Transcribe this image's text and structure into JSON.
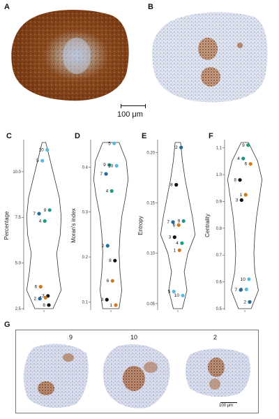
{
  "panels": {
    "A": "A",
    "B": "B",
    "C": "C",
    "D": "D",
    "E": "E",
    "F": "F",
    "G": "G"
  },
  "scalebar_top": "100 μm",
  "scalebar_bottom": "100 μm",
  "colors": {
    "cyan": "#5bb8de",
    "teal": "#1e9a86",
    "blue": "#1f6d9b",
    "orange": "#d17a1a",
    "black": "#111111"
  },
  "chart_data": [
    {
      "type": "scatter",
      "xlabel": "",
      "ylabel": "Percentage",
      "yticks": [
        "2.5",
        "5.0",
        "7.5",
        "10.0"
      ],
      "ylim": [
        2.5,
        11.6
      ],
      "points": [
        {
          "label": "10",
          "y": 11.2,
          "color": "#5bb8de"
        },
        {
          "label": "5",
          "y": 10.6,
          "color": "#5bb8de"
        },
        {
          "label": "9",
          "y": 7.9,
          "color": "#1e9a86"
        },
        {
          "label": "7",
          "y": 7.7,
          "color": "#1f6d9b"
        },
        {
          "label": "4",
          "y": 7.3,
          "color": "#1e9a86"
        },
        {
          "label": "6",
          "y": 3.7,
          "color": "#d17a1a"
        },
        {
          "label": "3",
          "y": 3.2,
          "color": "#111111"
        },
        {
          "label": "1",
          "y": 3.1,
          "color": "#d17a1a"
        },
        {
          "label": "2",
          "y": 3.05,
          "color": "#1f6d9b"
        },
        {
          "label": "8",
          "y": 2.7,
          "color": "#111111"
        }
      ]
    },
    {
      "type": "scatter",
      "xlabel": "",
      "ylabel": "Moran's index",
      "yticks": [
        "0.1",
        "0.2",
        "0.3",
        "0.4"
      ],
      "ylim": [
        0.085,
        0.455
      ],
      "points": [
        {
          "label": "5",
          "y": 0.453,
          "color": "#5bb8de"
        },
        {
          "label": "9",
          "y": 0.405,
          "color": "#1e9a86"
        },
        {
          "label": "10",
          "y": 0.403,
          "color": "#5bb8de"
        },
        {
          "label": "7",
          "y": 0.385,
          "color": "#1f6d9b"
        },
        {
          "label": "4",
          "y": 0.347,
          "color": "#1e9a86"
        },
        {
          "label": "2",
          "y": 0.225,
          "color": "#1f6d9b"
        },
        {
          "label": "8",
          "y": 0.192,
          "color": "#111111"
        },
        {
          "label": "6",
          "y": 0.147,
          "color": "#d17a1a"
        },
        {
          "label": "3",
          "y": 0.105,
          "color": "#111111"
        },
        {
          "label": "1",
          "y": 0.093,
          "color": "#d17a1a"
        }
      ]
    },
    {
      "type": "scatter",
      "xlabel": "",
      "ylabel": "Entropy",
      "yticks": [
        "0.05",
        "0.10",
        "0.15",
        "0.20"
      ],
      "ylim": [
        0.045,
        0.21
      ],
      "points": [
        {
          "label": "2",
          "y": 0.205,
          "color": "#1f6d9b"
        },
        {
          "label": "8",
          "y": 0.168,
          "color": "#111111"
        },
        {
          "label": "9",
          "y": 0.132,
          "color": "#1e9a86"
        },
        {
          "label": "7",
          "y": 0.131,
          "color": "#1f6d9b"
        },
        {
          "label": "6",
          "y": 0.128,
          "color": "#d17a1a"
        },
        {
          "label": "3",
          "y": 0.116,
          "color": "#111111"
        },
        {
          "label": "4",
          "y": 0.11,
          "color": "#1e9a86"
        },
        {
          "label": "1",
          "y": 0.103,
          "color": "#d17a1a"
        },
        {
          "label": "5",
          "y": 0.062,
          "color": "#5bb8de"
        },
        {
          "label": "10",
          "y": 0.058,
          "color": "#5bb8de"
        }
      ]
    },
    {
      "type": "scatter",
      "xlabel": "",
      "ylabel": "Centrality",
      "yticks": [
        "0.5",
        "0.6",
        "0.7",
        "0.8",
        "0.9",
        "1.0",
        "1.1"
      ],
      "ylim": [
        0.5,
        1.12
      ],
      "points": [
        {
          "label": "9",
          "y": 1.11,
          "color": "#1e9a86"
        },
        {
          "label": "4",
          "y": 1.06,
          "color": "#1e9a86"
        },
        {
          "label": "6",
          "y": 1.04,
          "color": "#d17a1a"
        },
        {
          "label": "8",
          "y": 0.98,
          "color": "#111111"
        },
        {
          "label": "1",
          "y": 0.925,
          "color": "#d17a1a"
        },
        {
          "label": "3",
          "y": 0.905,
          "color": "#111111"
        },
        {
          "label": "10",
          "y": 0.61,
          "color": "#5bb8de"
        },
        {
          "label": "5",
          "y": 0.572,
          "color": "#5bb8de"
        },
        {
          "label": "7",
          "y": 0.57,
          "color": "#1f6d9b"
        },
        {
          "label": "2",
          "y": 0.525,
          "color": "#1f6d9b"
        }
      ]
    }
  ],
  "g_labels": [
    "9",
    "10",
    "2"
  ]
}
